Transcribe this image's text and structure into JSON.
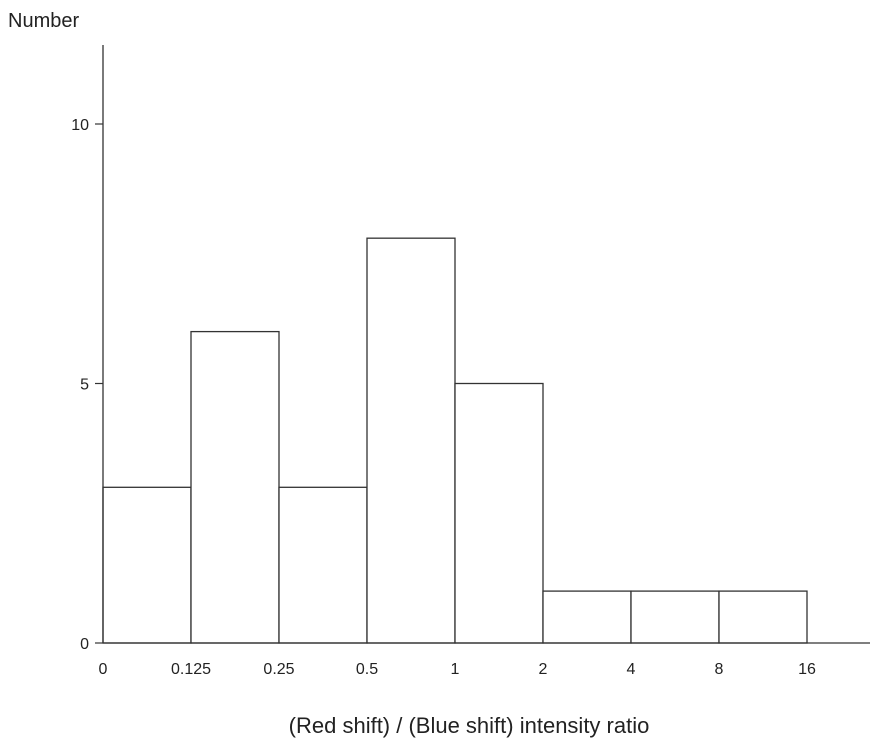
{
  "chart_data": {
    "type": "bar",
    "subtype": "histogram",
    "title": "",
    "ylabel": "Number",
    "xlabel": "(Red shift) / (Blue shift) intensity ratio",
    "x_ticks": [
      "0",
      "0.125",
      "0.25",
      "0.5",
      "1",
      "2",
      "4",
      "8",
      "16"
    ],
    "bins": [
      {
        "from": "0",
        "to": "0.125",
        "count": 3
      },
      {
        "from": "0.125",
        "to": "0.25",
        "count": 6
      },
      {
        "from": "0.25",
        "to": "0.5",
        "count": 3
      },
      {
        "from": "0.5",
        "to": "1",
        "count": 7.8
      },
      {
        "from": "1",
        "to": "2",
        "count": 5
      },
      {
        "from": "2",
        "to": "4",
        "count": 1
      },
      {
        "from": "4",
        "to": "8",
        "count": 1
      },
      {
        "from": "8",
        "to": "16",
        "count": 1
      }
    ],
    "y_ticks": [
      0,
      5,
      10
    ],
    "ylim": [
      0,
      11.5
    ],
    "grid": false,
    "legend": "none",
    "colors": {
      "bar_fill": "#ffffff",
      "bar_stroke": "#333333",
      "axis": "#333333"
    }
  }
}
